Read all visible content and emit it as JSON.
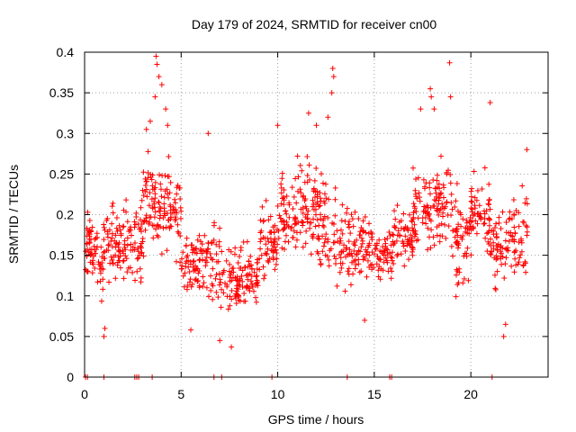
{
  "chart_data": {
    "type": "scatter",
    "title": "Day 179 of 2024, SRMTID for receiver cn00",
    "xlabel": "GPS time / hours",
    "ylabel": "SRMTID / TECUs",
    "xlim": [
      0,
      24
    ],
    "ylim": [
      0,
      0.4
    ],
    "xticks": [
      0,
      5,
      10,
      15,
      20
    ],
    "xtick_labels": [
      "0",
      "5",
      "10",
      "15",
      "20"
    ],
    "yticks": [
      0,
      0.05,
      0.1,
      0.15,
      0.2,
      0.25,
      0.3,
      0.35,
      0.4
    ],
    "ytick_labels": [
      "0",
      "0.05",
      "0.1",
      "0.15",
      "0.2",
      "0.25",
      "0.3",
      "0.35",
      "0.4"
    ],
    "grid": true,
    "marker": "+",
    "color": "#ff0000",
    "series": [
      {
        "name": "SRMTID",
        "segments": [
          {
            "x0": 0.0,
            "x1": 0.5,
            "mean": 0.16,
            "spread": 0.045,
            "n": 40
          },
          {
            "x0": 0.5,
            "x1": 1.0,
            "mean": 0.14,
            "spread": 0.05,
            "n": 30
          },
          {
            "x0": 1.0,
            "x1": 2.0,
            "mean": 0.165,
            "spread": 0.05,
            "n": 60
          },
          {
            "x0": 2.0,
            "x1": 3.0,
            "mean": 0.17,
            "spread": 0.055,
            "n": 60
          },
          {
            "x0": 3.0,
            "x1": 4.0,
            "mean": 0.215,
            "spread": 0.07,
            "n": 70
          },
          {
            "x0": 4.0,
            "x1": 5.0,
            "mean": 0.205,
            "spread": 0.06,
            "n": 60
          },
          {
            "x0": 5.0,
            "x1": 6.0,
            "mean": 0.14,
            "spread": 0.045,
            "n": 60
          },
          {
            "x0": 6.0,
            "x1": 7.0,
            "mean": 0.145,
            "spread": 0.055,
            "n": 55
          },
          {
            "x0": 7.0,
            "x1": 8.0,
            "mean": 0.115,
            "spread": 0.045,
            "n": 55
          },
          {
            "x0": 8.0,
            "x1": 9.0,
            "mean": 0.12,
            "spread": 0.045,
            "n": 60
          },
          {
            "x0": 9.0,
            "x1": 10.0,
            "mean": 0.165,
            "spread": 0.05,
            "n": 60
          },
          {
            "x0": 10.0,
            "x1": 11.0,
            "mean": 0.2,
            "spread": 0.055,
            "n": 60
          },
          {
            "x0": 11.0,
            "x1": 12.0,
            "mean": 0.21,
            "spread": 0.06,
            "n": 60
          },
          {
            "x0": 12.0,
            "x1": 13.0,
            "mean": 0.19,
            "spread": 0.065,
            "n": 60
          },
          {
            "x0": 13.0,
            "x1": 14.0,
            "mean": 0.16,
            "spread": 0.055,
            "n": 55
          },
          {
            "x0": 14.0,
            "x1": 15.0,
            "mean": 0.165,
            "spread": 0.05,
            "n": 55
          },
          {
            "x0": 15.0,
            "x1": 16.0,
            "mean": 0.15,
            "spread": 0.04,
            "n": 55
          },
          {
            "x0": 16.0,
            "x1": 17.0,
            "mean": 0.175,
            "spread": 0.045,
            "n": 55
          },
          {
            "x0": 17.0,
            "x1": 18.0,
            "mean": 0.205,
            "spread": 0.055,
            "n": 60
          },
          {
            "x0": 18.0,
            "x1": 19.0,
            "mean": 0.215,
            "spread": 0.065,
            "n": 60
          },
          {
            "x0": 19.0,
            "x1": 20.0,
            "mean": 0.165,
            "spread": 0.06,
            "n": 60
          },
          {
            "x0": 20.0,
            "x1": 21.0,
            "mean": 0.2,
            "spread": 0.05,
            "n": 60
          },
          {
            "x0": 21.0,
            "x1": 22.0,
            "mean": 0.16,
            "spread": 0.05,
            "n": 55
          },
          {
            "x0": 22.0,
            "x1": 23.0,
            "mean": 0.18,
            "spread": 0.055,
            "n": 50
          }
        ],
        "highlights": [
          {
            "x": 3.7,
            "y": 0.395
          },
          {
            "x": 3.75,
            "y": 0.385
          },
          {
            "x": 3.85,
            "y": 0.37
          },
          {
            "x": 3.65,
            "y": 0.345
          },
          {
            "x": 4.0,
            "y": 0.36
          },
          {
            "x": 4.2,
            "y": 0.33
          },
          {
            "x": 4.3,
            "y": 0.31
          },
          {
            "x": 3.2,
            "y": 0.305
          },
          {
            "x": 3.4,
            "y": 0.315
          },
          {
            "x": 6.4,
            "y": 0.3
          },
          {
            "x": 12.85,
            "y": 0.38
          },
          {
            "x": 12.9,
            "y": 0.37
          },
          {
            "x": 12.8,
            "y": 0.35
          },
          {
            "x": 12.6,
            "y": 0.32
          },
          {
            "x": 12.0,
            "y": 0.31
          },
          {
            "x": 10.0,
            "y": 0.31
          },
          {
            "x": 11.6,
            "y": 0.325
          },
          {
            "x": 17.9,
            "y": 0.355
          },
          {
            "x": 17.95,
            "y": 0.345
          },
          {
            "x": 18.1,
            "y": 0.33
          },
          {
            "x": 18.9,
            "y": 0.387
          },
          {
            "x": 18.95,
            "y": 0.345
          },
          {
            "x": 17.4,
            "y": 0.33
          },
          {
            "x": 21.0,
            "y": 0.338
          },
          {
            "x": 22.9,
            "y": 0.28
          },
          {
            "x": 7.0,
            "y": 0.045
          },
          {
            "x": 7.6,
            "y": 0.037
          },
          {
            "x": 1.0,
            "y": 0.05
          },
          {
            "x": 1.05,
            "y": 0.06
          },
          {
            "x": 5.5,
            "y": 0.058
          },
          {
            "x": 14.5,
            "y": 0.07
          },
          {
            "x": 21.7,
            "y": 0.05
          },
          {
            "x": 21.8,
            "y": 0.065
          }
        ],
        "zero_points": [
          0.05,
          0.15,
          1.0,
          2.6,
          2.7,
          2.8,
          3.5,
          6.7,
          7.1,
          9.7,
          13.6,
          15.8,
          15.9,
          21.1
        ]
      }
    ]
  }
}
